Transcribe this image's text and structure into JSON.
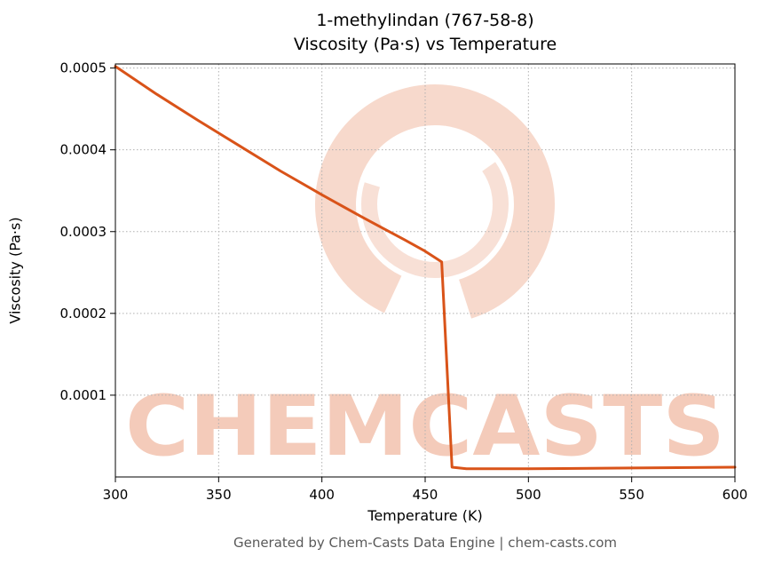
{
  "watermark": {
    "text": "CHEMCASTS"
  },
  "footer": {
    "text": "Generated by Chem-Casts Data Engine | chem-casts.com"
  },
  "chart_data": {
    "type": "line",
    "title_line1": "1-methylindan (767-58-8)",
    "title_line2": "Viscosity (Pa·s) vs Temperature",
    "xlabel": "Temperature (K)",
    "ylabel": "Viscosity (Pa·s)",
    "xlim": [
      300,
      600
    ],
    "ylim": [
      0,
      0.000505
    ],
    "xticks": [
      300,
      350,
      400,
      450,
      500,
      550,
      600
    ],
    "xtick_labels": [
      "300",
      "350",
      "400",
      "450",
      "500",
      "550",
      "600"
    ],
    "yticks": [
      0.0001,
      0.0002,
      0.0003,
      0.0004,
      0.0005
    ],
    "ytick_labels": [
      "0.0001",
      "0.0002",
      "0.0003",
      "0.0004",
      "0.0005"
    ],
    "grid": true,
    "grid_style": "dotted",
    "line_color": "#d95319",
    "watermark_color": "#d95319",
    "series": [
      {
        "name": "viscosity",
        "x": [
          300,
          320,
          340,
          360,
          380,
          400,
          420,
          440,
          450,
          458,
          463,
          470,
          500,
          550,
          600
        ],
        "y": [
          0.000502,
          0.000468,
          0.000436,
          0.000405,
          0.000374,
          0.000345,
          0.000317,
          0.00029,
          0.000276,
          0.000263,
          1.2e-05,
          1e-05,
          1e-05,
          1.1e-05,
          1.2e-05
        ]
      }
    ]
  }
}
